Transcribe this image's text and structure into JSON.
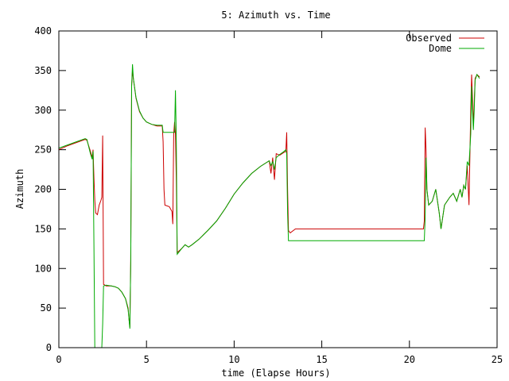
{
  "chart_data": {
    "type": "line",
    "title": "5: Azimuth vs. Time",
    "xlabel": "time (Elapse Hours)",
    "ylabel": "Azimuth",
    "xlim": [
      0,
      25
    ],
    "ylim": [
      0,
      400
    ],
    "x_ticks": [
      0,
      5,
      10,
      15,
      20,
      25
    ],
    "y_ticks": [
      0,
      50,
      100,
      150,
      200,
      250,
      300,
      350,
      400
    ],
    "grid": false,
    "legend_position": "top-right",
    "series": [
      {
        "name": "Observed",
        "color": "#cc0000",
        "points": [
          [
            0.0,
            250
          ],
          [
            0.5,
            255
          ],
          [
            1.0,
            259
          ],
          [
            1.5,
            263
          ],
          [
            1.6,
            262
          ],
          [
            1.8,
            248
          ],
          [
            1.9,
            240
          ],
          [
            1.95,
            250
          ],
          [
            2.0,
            215
          ],
          [
            2.05,
            186
          ],
          [
            2.1,
            170
          ],
          [
            2.2,
            168
          ],
          [
            2.3,
            180
          ],
          [
            2.4,
            186
          ],
          [
            2.45,
            190
          ],
          [
            2.5,
            268
          ],
          [
            2.55,
            80
          ],
          [
            2.7,
            78
          ],
          [
            3.0,
            78
          ],
          [
            3.2,
            77
          ],
          [
            3.4,
            75
          ],
          [
            3.6,
            70
          ],
          [
            3.8,
            62
          ],
          [
            3.95,
            50
          ],
          [
            4.0,
            36
          ],
          [
            4.05,
            26
          ],
          [
            4.1,
            110
          ],
          [
            4.15,
            330
          ],
          [
            4.2,
            350
          ],
          [
            4.25,
            340
          ],
          [
            4.4,
            315
          ],
          [
            4.6,
            298
          ],
          [
            4.8,
            290
          ],
          [
            5.0,
            285
          ],
          [
            5.3,
            282
          ],
          [
            5.6,
            280
          ],
          [
            5.9,
            280
          ],
          [
            5.95,
            260
          ],
          [
            6.0,
            200
          ],
          [
            6.05,
            180
          ],
          [
            6.3,
            178
          ],
          [
            6.45,
            172
          ],
          [
            6.5,
            156
          ],
          [
            6.55,
            270
          ],
          [
            6.6,
            285
          ],
          [
            6.65,
            270
          ],
          [
            6.7,
            210
          ],
          [
            6.75,
            120
          ],
          [
            7.0,
            125
          ],
          [
            7.2,
            130
          ],
          [
            7.4,
            127
          ],
          [
            7.6,
            130
          ],
          [
            8.0,
            137
          ],
          [
            8.5,
            148
          ],
          [
            9.0,
            160
          ],
          [
            9.5,
            176
          ],
          [
            10.0,
            194
          ],
          [
            10.5,
            208
          ],
          [
            11.0,
            220
          ],
          [
            11.5,
            229
          ],
          [
            12.0,
            236
          ],
          [
            12.1,
            220
          ],
          [
            12.2,
            240
          ],
          [
            12.3,
            212
          ],
          [
            12.4,
            245
          ],
          [
            12.6,
            243
          ],
          [
            12.8,
            246
          ],
          [
            12.95,
            248
          ],
          [
            13.0,
            272
          ],
          [
            13.05,
            200
          ],
          [
            13.1,
            148
          ],
          [
            13.2,
            145
          ],
          [
            13.5,
            150
          ],
          [
            14.0,
            150
          ],
          [
            16.0,
            150
          ],
          [
            18.0,
            150
          ],
          [
            20.0,
            150
          ],
          [
            20.8,
            150
          ],
          [
            20.85,
            160
          ],
          [
            20.9,
            278
          ],
          [
            20.95,
            250
          ],
          [
            21.0,
            200
          ],
          [
            21.1,
            180
          ],
          [
            21.3,
            185
          ],
          [
            21.5,
            200
          ],
          [
            21.7,
            170
          ],
          [
            21.8,
            150
          ],
          [
            22.0,
            180
          ],
          [
            22.3,
            190
          ],
          [
            22.5,
            195
          ],
          [
            22.7,
            185
          ],
          [
            22.9,
            200
          ],
          [
            23.0,
            190
          ],
          [
            23.1,
            205
          ],
          [
            23.2,
            200
          ],
          [
            23.3,
            230
          ],
          [
            23.4,
            180
          ],
          [
            23.5,
            300
          ],
          [
            23.55,
            345
          ],
          [
            23.6,
            315
          ],
          [
            23.65,
            280
          ],
          [
            23.7,
            310
          ],
          [
            23.75,
            340
          ],
          [
            23.85,
            345
          ],
          [
            24.0,
            342
          ]
        ]
      },
      {
        "name": "Dome",
        "color": "#00aa00",
        "points": [
          [
            0.0,
            252
          ],
          [
            0.5,
            256
          ],
          [
            1.0,
            260
          ],
          [
            1.5,
            264
          ],
          [
            1.6,
            263
          ],
          [
            1.8,
            245
          ],
          [
            1.9,
            238
          ],
          [
            1.95,
            248
          ],
          [
            2.0,
            130
          ],
          [
            2.05,
            0
          ],
          [
            2.45,
            0
          ],
          [
            2.5,
            30
          ],
          [
            2.55,
            78
          ],
          [
            2.7,
            79
          ],
          [
            3.0,
            78
          ],
          [
            3.2,
            77
          ],
          [
            3.4,
            75
          ],
          [
            3.6,
            70
          ],
          [
            3.8,
            62
          ],
          [
            3.95,
            48
          ],
          [
            4.0,
            36
          ],
          [
            4.05,
            24
          ],
          [
            4.1,
            110
          ],
          [
            4.15,
            330
          ],
          [
            4.2,
            358
          ],
          [
            4.25,
            340
          ],
          [
            4.4,
            316
          ],
          [
            4.6,
            299
          ],
          [
            4.8,
            290
          ],
          [
            5.0,
            285
          ],
          [
            5.3,
            282
          ],
          [
            5.6,
            281
          ],
          [
            5.9,
            281
          ],
          [
            5.95,
            272
          ],
          [
            6.6,
            272
          ],
          [
            6.65,
            325
          ],
          [
            6.7,
            260
          ],
          [
            6.75,
            118
          ],
          [
            7.0,
            125
          ],
          [
            7.2,
            130
          ],
          [
            7.4,
            127
          ],
          [
            7.6,
            130
          ],
          [
            8.0,
            137
          ],
          [
            8.5,
            148
          ],
          [
            9.0,
            160
          ],
          [
            9.5,
            176
          ],
          [
            10.0,
            194
          ],
          [
            10.5,
            208
          ],
          [
            11.0,
            220
          ],
          [
            11.5,
            229
          ],
          [
            12.0,
            236
          ],
          [
            12.1,
            230
          ],
          [
            12.2,
            235
          ],
          [
            12.3,
            225
          ],
          [
            12.4,
            240
          ],
          [
            12.6,
            244
          ],
          [
            12.8,
            247
          ],
          [
            12.95,
            250
          ],
          [
            13.0,
            245
          ],
          [
            13.05,
            170
          ],
          [
            13.1,
            135
          ],
          [
            14.0,
            135
          ],
          [
            16.0,
            135
          ],
          [
            18.0,
            135
          ],
          [
            20.0,
            135
          ],
          [
            20.85,
            135
          ],
          [
            20.9,
            165
          ],
          [
            20.95,
            240
          ],
          [
            21.0,
            200
          ],
          [
            21.1,
            180
          ],
          [
            21.3,
            185
          ],
          [
            21.5,
            200
          ],
          [
            21.7,
            170
          ],
          [
            21.8,
            150
          ],
          [
            22.0,
            180
          ],
          [
            22.3,
            190
          ],
          [
            22.5,
            195
          ],
          [
            22.7,
            185
          ],
          [
            22.9,
            200
          ],
          [
            23.0,
            190
          ],
          [
            23.1,
            205
          ],
          [
            23.2,
            200
          ],
          [
            23.3,
            235
          ],
          [
            23.4,
            230
          ],
          [
            23.5,
            270
          ],
          [
            23.55,
            330
          ],
          [
            23.6,
            300
          ],
          [
            23.65,
            275
          ],
          [
            23.7,
            300
          ],
          [
            23.75,
            338
          ],
          [
            23.85,
            345
          ],
          [
            24.0,
            340
          ]
        ]
      }
    ]
  }
}
